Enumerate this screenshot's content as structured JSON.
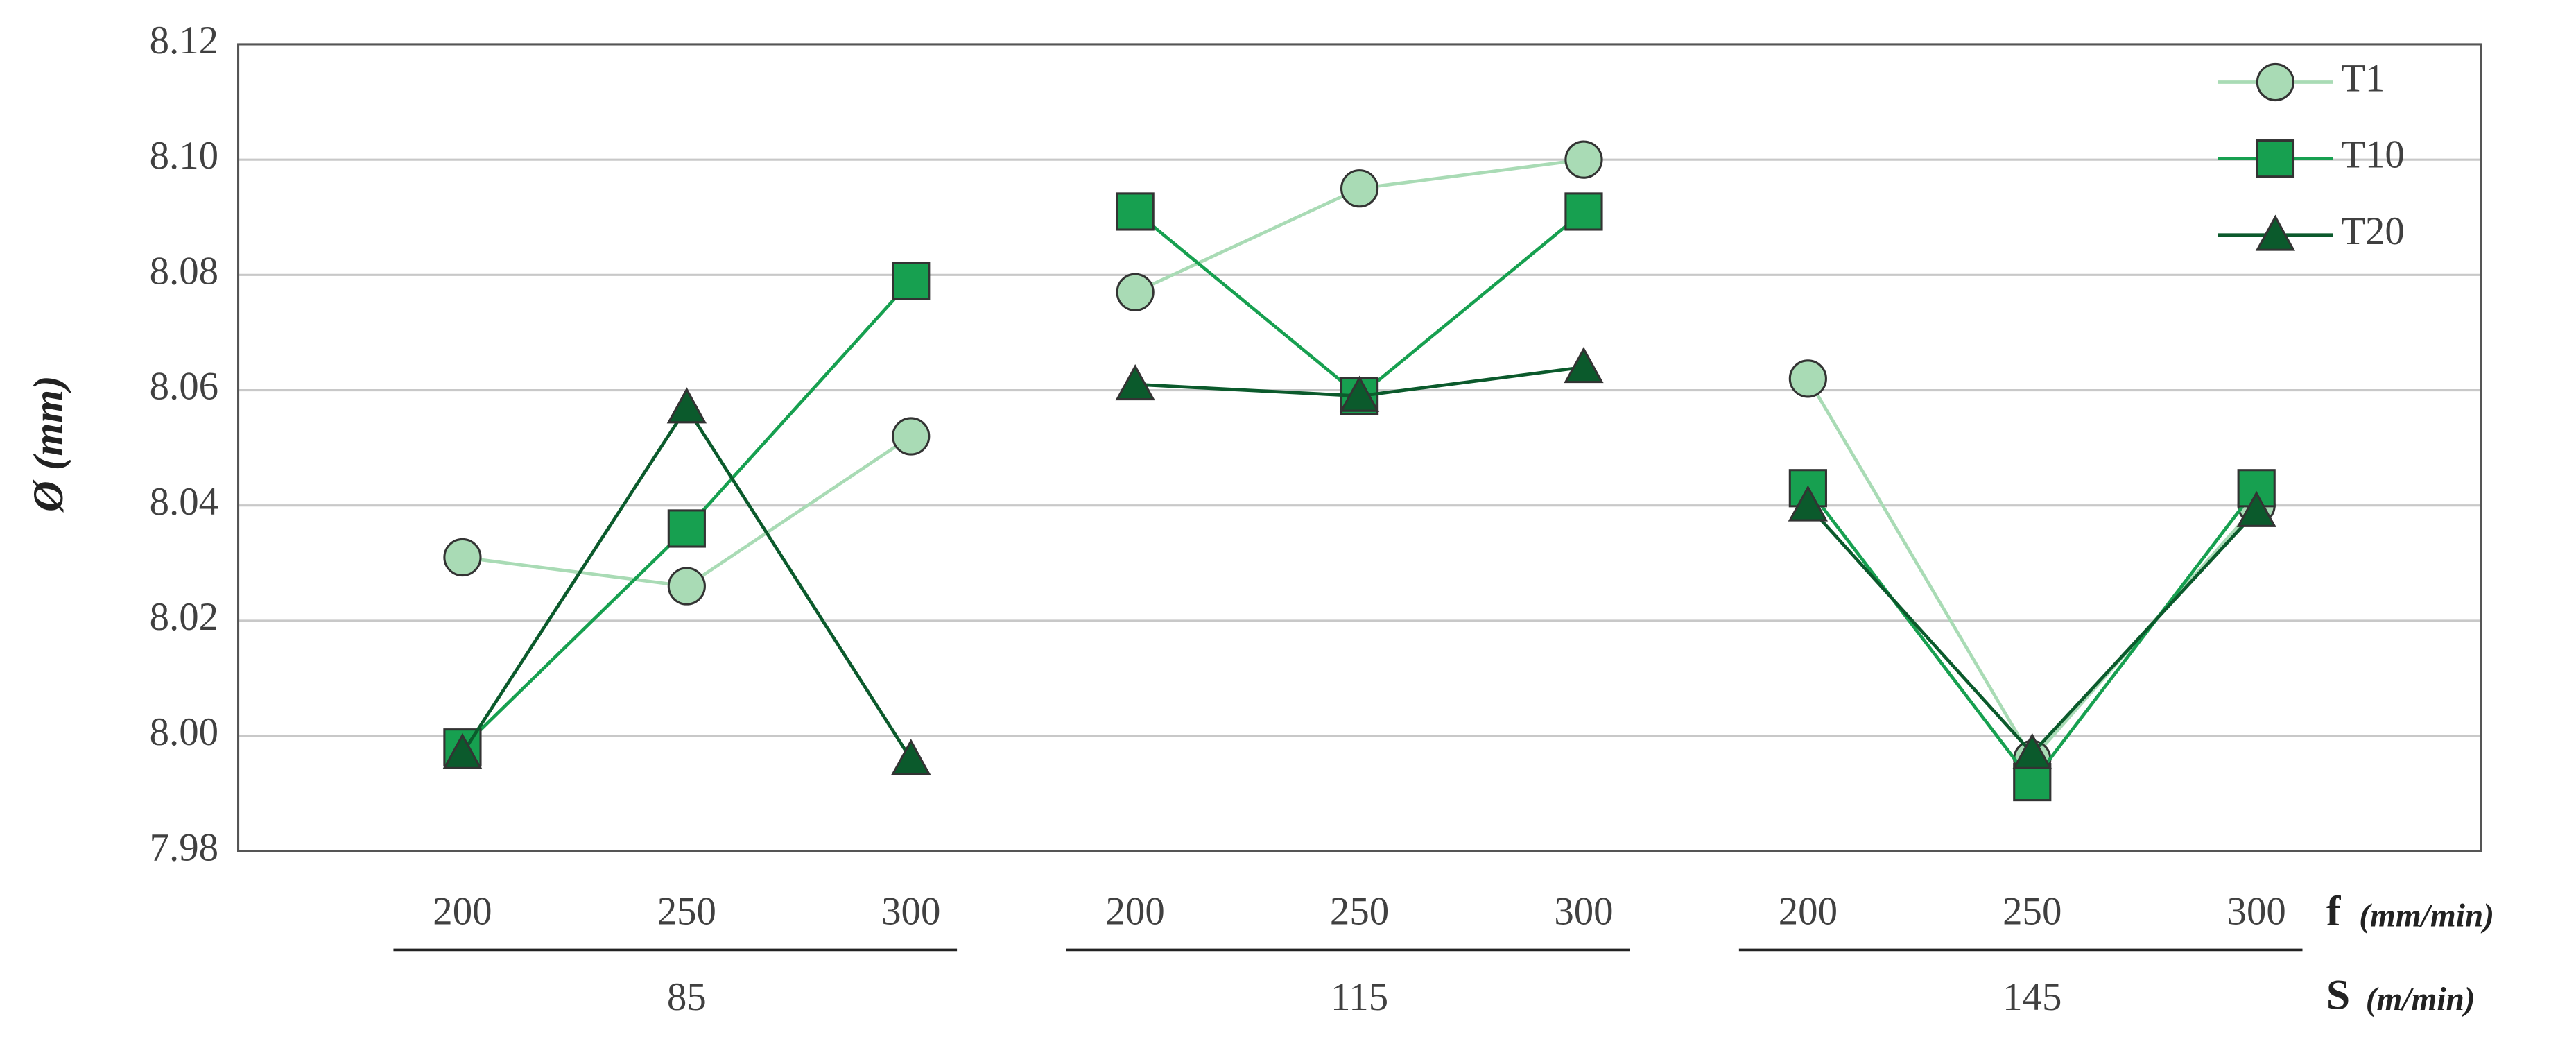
{
  "chart_data": {
    "type": "line",
    "y_label": "Ø (mm)",
    "x_label": {
      "symbol": "f",
      "unit": "(mm/min)"
    },
    "group_axis_label": {
      "symbol": "S",
      "unit": "(m/min)"
    },
    "categories": [
      "200",
      "250",
      "300",
      "200",
      "250",
      "300",
      "200",
      "250",
      "300"
    ],
    "group_labels": [
      "85",
      "115",
      "145"
    ],
    "ylim": [
      7.98,
      8.12
    ],
    "yticks": [
      7.98,
      {
        "value": 8,
        "label": "8.00"
      },
      8.02,
      8.04,
      8.06,
      8.08,
      {
        "value": 8.1,
        "label": "8.10"
      },
      8.12
    ],
    "grid": true,
    "legend": "top-right",
    "series": [
      {
        "name": "T1",
        "color": "#a9dbb5",
        "marker": "circle",
        "values": [
          8.031,
          8.026,
          8.052,
          8.077,
          8.095,
          8.1,
          8.062,
          7.996,
          8.04
        ]
      },
      {
        "name": "T10",
        "color": "#17a050",
        "marker": "square",
        "values": [
          7.998,
          8.036,
          8.079,
          8.091,
          8.059,
          8.091,
          8.043,
          7.992,
          8.043
        ]
      },
      {
        "name": "T20",
        "color": "#0b5a2c",
        "marker": "triangle",
        "values": [
          7.997,
          8.057,
          7.996,
          8.061,
          8.059,
          8.064,
          8.04,
          7.997,
          8.039
        ]
      }
    ]
  }
}
